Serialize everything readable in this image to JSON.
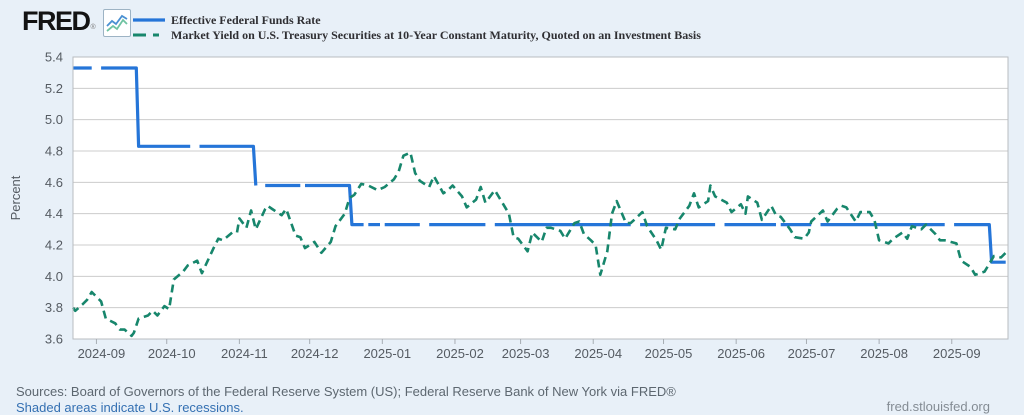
{
  "header": {
    "logo_text": "FRED",
    "logo_registered": "®",
    "legend": [
      {
        "label": "Effective Federal Funds Rate",
        "color": "#2575d8",
        "style": "solid"
      },
      {
        "label": "Market Yield on U.S. Treasury Securities at 10-Year Constant Maturity, Quoted on an Investment Basis",
        "color": "#17866c",
        "style": "dashed"
      }
    ]
  },
  "footer": {
    "sources": "Sources: Board of Governors of the Federal Reserve System (US); Federal Reserve Bank of New York via FRED®",
    "recession_note": "Shaded areas indicate U.S. recessions.",
    "site": "fred.stlouisfed.org"
  },
  "chart_data": {
    "type": "line",
    "title": "",
    "xlabel": "",
    "ylabel": "Percent",
    "ylim": [
      3.6,
      5.4
    ],
    "yticks": [
      5.4,
      5.2,
      5.0,
      4.8,
      4.6,
      4.4,
      4.2,
      4.0,
      3.8,
      3.6
    ],
    "x_domain": [
      "2024-08-22",
      "2025-09-25"
    ],
    "xticks": [
      {
        "date": "2024-09-01",
        "label": "2024-09"
      },
      {
        "date": "2024-10-01",
        "label": "2024-10"
      },
      {
        "date": "2024-11-01",
        "label": "2024-11"
      },
      {
        "date": "2024-12-01",
        "label": "2024-12"
      },
      {
        "date": "2025-01-01",
        "label": "2025-01"
      },
      {
        "date": "2025-02-01",
        "label": "2025-02"
      },
      {
        "date": "2025-03-01",
        "label": "2025-03"
      },
      {
        "date": "2025-04-01",
        "label": "2025-04"
      },
      {
        "date": "2025-05-01",
        "label": "2025-05"
      },
      {
        "date": "2025-06-01",
        "label": "2025-06"
      },
      {
        "date": "2025-07-01",
        "label": "2025-07"
      },
      {
        "date": "2025-08-01",
        "label": "2025-08"
      },
      {
        "date": "2025-09-01",
        "label": "2025-09"
      }
    ],
    "grid": "horizontal",
    "legend_position": "top-header",
    "colors": {
      "grid": "#cccccc",
      "border": "#b8bcc0",
      "axis_text": "#555b62",
      "tick": "#a7adb3",
      "plot_bg": "#ffffff"
    },
    "series": [
      {
        "id": "effr",
        "name": "Effective Federal Funds Rate",
        "color": "#2575d8",
        "width": 3.2,
        "dash": null,
        "segments": [
          [
            [
              "2024-08-22",
              5.33
            ],
            [
              "2024-08-30",
              5.33
            ]
          ],
          [
            [
              "2024-09-03",
              5.33
            ],
            [
              "2024-09-18",
              5.33
            ],
            [
              "2024-09-19",
              4.83
            ],
            [
              "2024-10-11",
              4.83
            ]
          ],
          [
            [
              "2024-10-15",
              4.83
            ],
            [
              "2024-11-07",
              4.83
            ],
            [
              "2024-11-08",
              4.58
            ]
          ],
          [
            [
              "2024-11-12",
              4.58
            ],
            [
              "2024-11-27",
              4.58
            ]
          ],
          [
            [
              "2024-11-29",
              4.58
            ],
            [
              "2024-12-18",
              4.58
            ],
            [
              "2024-12-19",
              4.33
            ],
            [
              "2024-12-24",
              4.33
            ]
          ],
          [
            [
              "2024-12-26",
              4.33
            ],
            [
              "2024-12-31",
              4.33
            ]
          ],
          [
            [
              "2025-01-02",
              4.33
            ],
            [
              "2025-01-17",
              4.33
            ]
          ],
          [
            [
              "2025-01-21",
              4.33
            ],
            [
              "2025-02-14",
              4.33
            ]
          ],
          [
            [
              "2025-02-18",
              4.33
            ],
            [
              "2025-04-17",
              4.33
            ]
          ],
          [
            [
              "2025-04-21",
              4.33
            ],
            [
              "2025-05-23",
              4.33
            ]
          ],
          [
            [
              "2025-05-27",
              4.33
            ],
            [
              "2025-06-18",
              4.33
            ]
          ],
          [
            [
              "2025-06-20",
              4.33
            ],
            [
              "2025-07-03",
              4.33
            ]
          ],
          [
            [
              "2025-07-07",
              4.33
            ],
            [
              "2025-08-29",
              4.33
            ]
          ],
          [
            [
              "2025-09-02",
              4.33
            ],
            [
              "2025-09-17",
              4.33
            ],
            [
              "2025-09-18",
              4.09
            ],
            [
              "2025-09-24",
              4.09
            ]
          ]
        ]
      },
      {
        "id": "dgs10",
        "name": "Market Yield on U.S. Treasury Securities at 10-Year Constant Maturity, Quoted on an Investment Basis",
        "color": "#17866c",
        "width": 2.6,
        "dash": "8 5",
        "segments": [
          [
            [
              "2024-08-22",
              3.8
            ],
            [
              "2024-08-23",
              3.78
            ],
            [
              "2024-08-26",
              3.82
            ],
            [
              "2024-08-28",
              3.85
            ],
            [
              "2024-08-30",
              3.9
            ],
            [
              "2024-09-03",
              3.84
            ],
            [
              "2024-09-05",
              3.73
            ],
            [
              "2024-09-09",
              3.7
            ],
            [
              "2024-09-11",
              3.66
            ],
            [
              "2024-09-13",
              3.66
            ],
            [
              "2024-09-16",
              3.62
            ],
            [
              "2024-09-17",
              3.64
            ],
            [
              "2024-09-19",
              3.73
            ],
            [
              "2024-09-23",
              3.75
            ],
            [
              "2024-09-25",
              3.78
            ],
            [
              "2024-09-27",
              3.75
            ],
            [
              "2024-09-30",
              3.81
            ],
            [
              "2024-10-02",
              3.79
            ],
            [
              "2024-10-04",
              3.98
            ],
            [
              "2024-10-08",
              4.03
            ],
            [
              "2024-10-10",
              4.07
            ],
            [
              "2024-10-14",
              4.1
            ],
            [
              "2024-10-16",
              4.02
            ],
            [
              "2024-10-21",
              4.18
            ],
            [
              "2024-10-23",
              4.24
            ],
            [
              "2024-10-25",
              4.23
            ],
            [
              "2024-10-29",
              4.28
            ],
            [
              "2024-10-31",
              4.28
            ],
            [
              "2024-11-01",
              4.37
            ],
            [
              "2024-11-04",
              4.31
            ],
            [
              "2024-11-06",
              4.42
            ],
            [
              "2024-11-08",
              4.3
            ],
            [
              "2024-11-12",
              4.43
            ],
            [
              "2024-11-13",
              4.45
            ],
            [
              "2024-11-15",
              4.43
            ],
            [
              "2024-11-19",
              4.39
            ],
            [
              "2024-11-21",
              4.43
            ],
            [
              "2024-11-25",
              4.26
            ],
            [
              "2024-11-27",
              4.25
            ],
            [
              "2024-11-29",
              4.18
            ],
            [
              "2024-12-03",
              4.22
            ],
            [
              "2024-12-06",
              4.15
            ],
            [
              "2024-12-10",
              4.22
            ],
            [
              "2024-12-12",
              4.32
            ],
            [
              "2024-12-16",
              4.4
            ],
            [
              "2024-12-18",
              4.5
            ],
            [
              "2024-12-20",
              4.52
            ],
            [
              "2024-12-23",
              4.59
            ],
            [
              "2024-12-26",
              4.58
            ],
            [
              "2024-12-30",
              4.55
            ],
            [
              "2025-01-02",
              4.57
            ],
            [
              "2025-01-06",
              4.62
            ],
            [
              "2025-01-08",
              4.67
            ],
            [
              "2025-01-10",
              4.77
            ],
            [
              "2025-01-13",
              4.79
            ],
            [
              "2025-01-15",
              4.66
            ],
            [
              "2025-01-17",
              4.61
            ],
            [
              "2025-01-21",
              4.57
            ],
            [
              "2025-01-23",
              4.64
            ],
            [
              "2025-01-27",
              4.53
            ],
            [
              "2025-01-29",
              4.55
            ],
            [
              "2025-01-31",
              4.58
            ],
            [
              "2025-02-04",
              4.51
            ],
            [
              "2025-02-06",
              4.44
            ],
            [
              "2025-02-10",
              4.49
            ],
            [
              "2025-02-12",
              4.57
            ],
            [
              "2025-02-14",
              4.47
            ],
            [
              "2025-02-18",
              4.55
            ],
            [
              "2025-02-20",
              4.5
            ],
            [
              "2025-02-24",
              4.4
            ],
            [
              "2025-02-26",
              4.25
            ],
            [
              "2025-02-28",
              4.24
            ],
            [
              "2025-03-04",
              4.16
            ],
            [
              "2025-03-06",
              4.28
            ],
            [
              "2025-03-10",
              4.22
            ],
            [
              "2025-03-12",
              4.31
            ],
            [
              "2025-03-14",
              4.31
            ],
            [
              "2025-03-18",
              4.29
            ],
            [
              "2025-03-20",
              4.24
            ],
            [
              "2025-03-24",
              4.34
            ],
            [
              "2025-03-26",
              4.35
            ],
            [
              "2025-03-28",
              4.27
            ],
            [
              "2025-03-31",
              4.23
            ],
            [
              "2025-04-02",
              4.2
            ],
            [
              "2025-04-04",
              4.01
            ],
            [
              "2025-04-07",
              4.16
            ],
            [
              "2025-04-09",
              4.4
            ],
            [
              "2025-04-11",
              4.48
            ],
            [
              "2025-04-15",
              4.34
            ],
            [
              "2025-04-17",
              4.34
            ],
            [
              "2025-04-22",
              4.41
            ],
            [
              "2025-04-24",
              4.32
            ],
            [
              "2025-04-28",
              4.23
            ],
            [
              "2025-04-30",
              4.17
            ],
            [
              "2025-05-02",
              4.31
            ],
            [
              "2025-05-06",
              4.3
            ],
            [
              "2025-05-08",
              4.37
            ],
            [
              "2025-05-12",
              4.45
            ],
            [
              "2025-05-14",
              4.53
            ],
            [
              "2025-05-16",
              4.44
            ],
            [
              "2025-05-20",
              4.48
            ],
            [
              "2025-05-21",
              4.58
            ],
            [
              "2025-05-23",
              4.51
            ],
            [
              "2025-05-28",
              4.47
            ],
            [
              "2025-05-30",
              4.41
            ],
            [
              "2025-06-03",
              4.46
            ],
            [
              "2025-06-05",
              4.4
            ],
            [
              "2025-06-06",
              4.51
            ],
            [
              "2025-06-10",
              4.47
            ],
            [
              "2025-06-12",
              4.36
            ],
            [
              "2025-06-16",
              4.45
            ],
            [
              "2025-06-18",
              4.39
            ],
            [
              "2025-06-20",
              4.38
            ],
            [
              "2025-06-24",
              4.3
            ],
            [
              "2025-06-26",
              4.25
            ],
            [
              "2025-06-30",
              4.24
            ],
            [
              "2025-07-02",
              4.28
            ],
            [
              "2025-07-03",
              4.35
            ],
            [
              "2025-07-08",
              4.42
            ],
            [
              "2025-07-10",
              4.35
            ],
            [
              "2025-07-14",
              4.43
            ],
            [
              "2025-07-16",
              4.45
            ],
            [
              "2025-07-18",
              4.44
            ],
            [
              "2025-07-22",
              4.35
            ],
            [
              "2025-07-24",
              4.41
            ],
            [
              "2025-07-28",
              4.41
            ],
            [
              "2025-07-30",
              4.36
            ],
            [
              "2025-08-01",
              4.23
            ],
            [
              "2025-08-05",
              4.21
            ],
            [
              "2025-08-07",
              4.24
            ],
            [
              "2025-08-11",
              4.28
            ],
            [
              "2025-08-13",
              4.24
            ],
            [
              "2025-08-15",
              4.32
            ],
            [
              "2025-08-19",
              4.3
            ],
            [
              "2025-08-21",
              4.33
            ],
            [
              "2025-08-25",
              4.27
            ],
            [
              "2025-08-27",
              4.23
            ],
            [
              "2025-08-29",
              4.23
            ],
            [
              "2025-09-03",
              4.21
            ],
            [
              "2025-09-05",
              4.1
            ],
            [
              "2025-09-09",
              4.06
            ],
            [
              "2025-09-11",
              4.01
            ],
            [
              "2025-09-15",
              4.03
            ],
            [
              "2025-09-17",
              4.08
            ],
            [
              "2025-09-19",
              4.13
            ],
            [
              "2025-09-22",
              4.12
            ],
            [
              "2025-09-24",
              4.15
            ]
          ]
        ]
      }
    ]
  }
}
